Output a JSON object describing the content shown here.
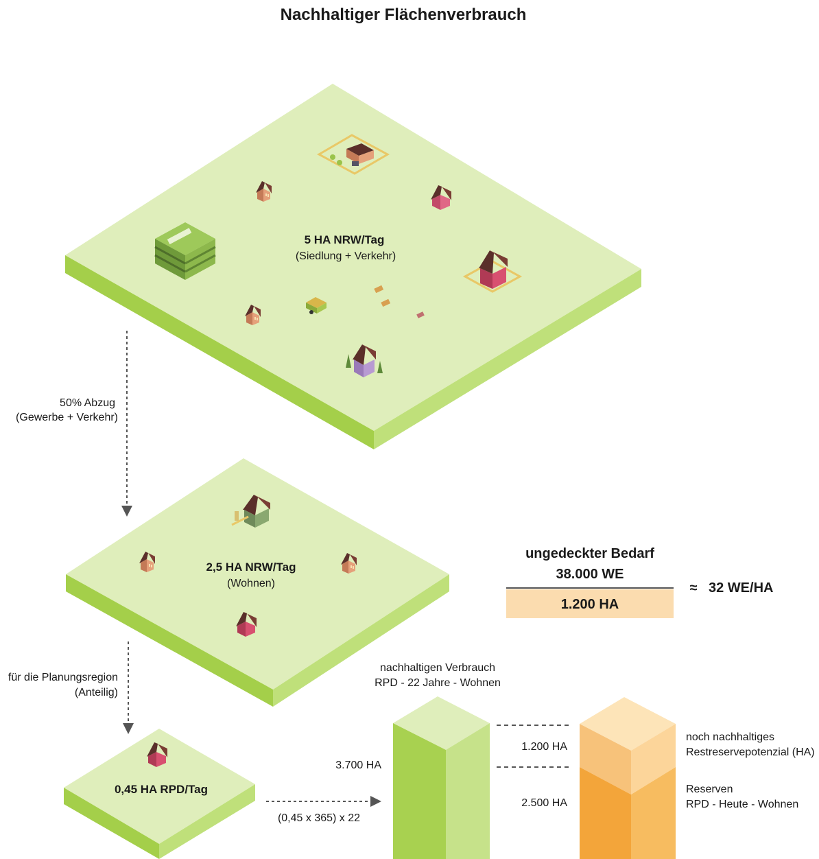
{
  "title": "Nachhaltiger Flächenverbrauch",
  "platforms": {
    "top": {
      "main": "5 HA NRW/Tag",
      "sub": "(Siedlung + Verkehr)"
    },
    "middle": {
      "main": "2,5 HA NRW/Tag",
      "sub": "(Wohnen)"
    },
    "bottom": {
      "main": "0,45 HA RPD/Tag"
    }
  },
  "arrows": {
    "first": {
      "line1": "50% Abzug",
      "line2": "(Gewerbe + Verkehr)"
    },
    "second": {
      "line1": "für die Planungsregion",
      "line2": "(Anteilig)"
    },
    "third": {
      "label": "(0,45 x 365) x 22"
    }
  },
  "fraction": {
    "numerator_line1": "ungedeckter Bedarf",
    "numerator_line2": "38.000 WE",
    "denominator": "1.200 HA",
    "approx_symbol": "≈",
    "result": "32 WE/HA"
  },
  "green_column": {
    "header_line1": "nachhaltigen Verbrauch",
    "header_line2": "RPD - 22 Jahre - Wohnen",
    "value": "3.700 HA"
  },
  "orange_column": {
    "upper_value": "1.200 HA",
    "lower_value": "2.500 HA",
    "upper_label_line1": "noch nachhaltiges",
    "upper_label_line2": "Restreservepotenzial (HA)",
    "lower_label_line1": "Reserven",
    "lower_label_line2": "RPD - Heute - Wohnen"
  },
  "colors": {
    "platform_top": "#dfeebb",
    "platform_side_left": "#a4cf4a",
    "platform_side_right": "#bfe07a",
    "column_green_left": "#a8d150",
    "column_green_right": "#c6e28a",
    "column_orange_light": "#fcd59a",
    "column_orange_mid": "#f7bc60",
    "column_orange_dark": "#f3a53a",
    "fraction_box": "#fbdcaf"
  }
}
